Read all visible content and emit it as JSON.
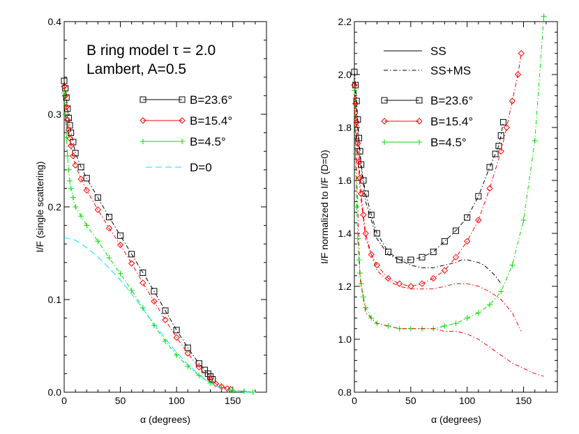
{
  "colors": {
    "b236": "#000000",
    "b154": "#ff0000",
    "b45": "#00dd00",
    "d0": "#00e5ff"
  },
  "chart_data": [
    {
      "type": "line",
      "xlabel": "α (degrees)",
      "ylabel": "I/F (single scattering)",
      "xlim": [
        0,
        180
      ],
      "ylim": [
        0,
        0.4
      ],
      "xticks": [
        "0",
        "50",
        "100",
        "150"
      ],
      "yticks": [
        "0.0",
        "0.1",
        "0.2",
        "0.3",
        "0.4"
      ],
      "annotations": [
        "B ring model   τ = 2.0",
        "Lambert, A=0.5"
      ],
      "legend": [
        "B=23.6°",
        "B=15.4°",
        "B=4.5°",
        "D=0"
      ],
      "series": [
        {
          "name": "B=23.6°",
          "color": "#000000",
          "marker": "square",
          "line": "dashdot",
          "x": [
            0,
            1,
            2,
            3,
            4,
            5,
            6,
            8,
            10,
            15,
            20,
            30,
            40,
            50,
            60,
            70,
            80,
            90,
            100,
            110,
            120,
            125,
            128,
            130,
            132
          ],
          "y": [
            0.336,
            0.328,
            0.318,
            0.306,
            0.296,
            0.288,
            0.28,
            0.27,
            0.258,
            0.243,
            0.231,
            0.21,
            0.189,
            0.169,
            0.149,
            0.129,
            0.109,
            0.088,
            0.067,
            0.048,
            0.031,
            0.024,
            0.02,
            0.017,
            0.014
          ]
        },
        {
          "name": "B=15.4°",
          "color": "#ff0000",
          "marker": "diamond",
          "line": "dashdot",
          "x": [
            0,
            1,
            2,
            3,
            4,
            5,
            6,
            8,
            10,
            15,
            20,
            30,
            40,
            50,
            60,
            70,
            80,
            90,
            100,
            110,
            120,
            130,
            135,
            140,
            145,
            148
          ],
          "y": [
            0.33,
            0.32,
            0.308,
            0.294,
            0.283,
            0.274,
            0.266,
            0.255,
            0.245,
            0.23,
            0.218,
            0.197,
            0.177,
            0.159,
            0.139,
            0.118,
            0.098,
            0.078,
            0.059,
            0.042,
            0.027,
            0.014,
            0.009,
            0.006,
            0.004,
            0.003
          ]
        },
        {
          "name": "B=4.5°",
          "color": "#00dd00",
          "marker": "plus",
          "line": "dashdot",
          "x": [
            0,
            1,
            2,
            3,
            4,
            5,
            6,
            8,
            10,
            15,
            20,
            30,
            40,
            50,
            60,
            70,
            80,
            90,
            100,
            110,
            120,
            130,
            140,
            150,
            160,
            168
          ],
          "y": [
            0.323,
            0.3,
            0.275,
            0.255,
            0.24,
            0.228,
            0.22,
            0.21,
            0.2,
            0.19,
            0.18,
            0.163,
            0.145,
            0.128,
            0.11,
            0.091,
            0.072,
            0.055,
            0.04,
            0.028,
            0.018,
            0.01,
            0.005,
            0.002,
            0.001,
            0.0
          ]
        },
        {
          "name": "D=0",
          "color": "#00e5ff",
          "marker": "none",
          "line": "dashed",
          "x": [
            0,
            10,
            20,
            30,
            40,
            50,
            60,
            70,
            80,
            90,
            100,
            110,
            120,
            130,
            140,
            150,
            160,
            170
          ],
          "y": [
            0.167,
            0.164,
            0.156,
            0.146,
            0.134,
            0.121,
            0.106,
            0.09,
            0.074,
            0.058,
            0.043,
            0.03,
            0.019,
            0.01,
            0.004,
            0.001,
            0.0,
            0.0
          ]
        }
      ]
    },
    {
      "type": "line",
      "xlabel": "α (degrees)",
      "ylabel": "I/F normalized to I/F (D=0)",
      "xlim": [
        0,
        180
      ],
      "ylim": [
        0.8,
        2.2
      ],
      "xticks": [
        "0",
        "50",
        "100",
        "150"
      ],
      "yticks": [
        "0.8",
        "1.0",
        "1.2",
        "1.4",
        "1.6",
        "1.8",
        "2.0",
        "2.2"
      ],
      "legend": [
        "SS",
        "SS+MS",
        "B=23.6°",
        "B=15.4°",
        "B=4.5°"
      ],
      "series": [
        {
          "name": "B=23.6°",
          "color": "#000000",
          "marker": "square",
          "line": "dashdot",
          "x": [
            0,
            1,
            2,
            3,
            4,
            5,
            6,
            8,
            10,
            15,
            20,
            30,
            40,
            50,
            60,
            70,
            80,
            90,
            100,
            110,
            120,
            125,
            128,
            130,
            132
          ],
          "y": [
            2.01,
            1.96,
            1.9,
            1.83,
            1.76,
            1.71,
            1.66,
            1.6,
            1.55,
            1.47,
            1.4,
            1.33,
            1.3,
            1.3,
            1.31,
            1.33,
            1.37,
            1.41,
            1.46,
            1.54,
            1.65,
            1.7,
            1.73,
            1.77,
            1.82
          ]
        },
        {
          "name": "SS+MS B=23.6°",
          "color": "#000000",
          "marker": "none",
          "line": "dashdot",
          "x": [
            0,
            5,
            10,
            20,
            30,
            40,
            50,
            60,
            70,
            80,
            90,
            95,
            100,
            110,
            115,
            120,
            125,
            130
          ],
          "y": [
            1.98,
            1.68,
            1.52,
            1.38,
            1.32,
            1.3,
            1.28,
            1.27,
            1.27,
            1.28,
            1.29,
            1.3,
            1.3,
            1.29,
            1.28,
            1.26,
            1.24,
            1.21
          ]
        },
        {
          "name": "B=15.4°",
          "color": "#ff0000",
          "marker": "diamond",
          "line": "dashdot",
          "x": [
            0,
            1,
            2,
            3,
            4,
            5,
            6,
            8,
            10,
            15,
            20,
            30,
            40,
            50,
            60,
            70,
            80,
            90,
            100,
            110,
            120,
            130,
            135,
            140,
            145,
            148
          ],
          "y": [
            1.96,
            1.89,
            1.82,
            1.74,
            1.67,
            1.61,
            1.55,
            1.47,
            1.4,
            1.32,
            1.28,
            1.23,
            1.21,
            1.2,
            1.21,
            1.23,
            1.26,
            1.31,
            1.37,
            1.45,
            1.57,
            1.71,
            1.8,
            1.9,
            2.0,
            2.08
          ]
        },
        {
          "name": "SS+MS B=15.4°",
          "color": "#ff0000",
          "marker": "none",
          "line": "dashdot",
          "x": [
            0,
            5,
            10,
            20,
            30,
            40,
            50,
            60,
            70,
            80,
            90,
            100,
            110,
            120,
            130,
            140,
            148
          ],
          "y": [
            1.92,
            1.56,
            1.38,
            1.26,
            1.22,
            1.2,
            1.19,
            1.19,
            1.19,
            1.2,
            1.21,
            1.21,
            1.2,
            1.18,
            1.15,
            1.1,
            1.03
          ]
        },
        {
          "name": "B=4.5°",
          "color": "#00dd00",
          "marker": "plus",
          "line": "dashdot",
          "x": [
            0,
            1,
            2,
            3,
            4,
            5,
            6,
            8,
            10,
            15,
            20,
            30,
            40,
            50,
            60,
            70,
            80,
            90,
            100,
            110,
            120,
            130,
            140,
            150,
            160,
            168
          ],
          "y": [
            1.94,
            1.7,
            1.5,
            1.38,
            1.3,
            1.25,
            1.21,
            1.16,
            1.12,
            1.08,
            1.06,
            1.05,
            1.04,
            1.04,
            1.04,
            1.04,
            1.05,
            1.06,
            1.08,
            1.1,
            1.13,
            1.18,
            1.28,
            1.45,
            1.75,
            2.22
          ]
        },
        {
          "name": "SS+MS B=4.5°",
          "color": "#ff0000",
          "marker": "none",
          "line": "dashdot",
          "x": [
            0,
            5,
            10,
            20,
            30,
            40,
            50,
            60,
            70,
            80,
            90,
            100,
            110,
            120,
            130,
            140,
            150,
            160,
            168
          ],
          "y": [
            1.9,
            1.23,
            1.1,
            1.06,
            1.05,
            1.04,
            1.04,
            1.04,
            1.04,
            1.03,
            1.03,
            1.02,
            1.0,
            0.97,
            0.94,
            0.91,
            0.89,
            0.87,
            0.86
          ]
        }
      ]
    }
  ]
}
